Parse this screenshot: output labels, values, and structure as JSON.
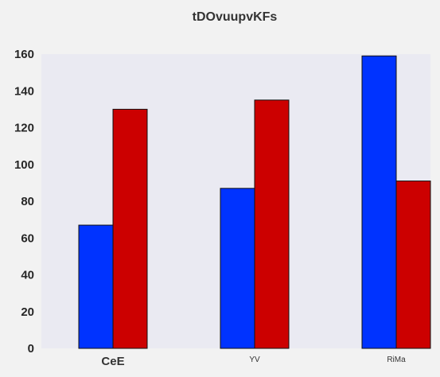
{
  "chart_data": {
    "type": "bar",
    "title": "tDOvuupvKFs",
    "xlabel": "",
    "ylabel": "",
    "categories": [
      "CeE",
      "YV",
      "RiMa"
    ],
    "series": [
      {
        "values": [
          67,
          87,
          159
        ]
      },
      {
        "values": [
          130,
          135,
          91
        ]
      }
    ],
    "ylim": [
      0,
      160
    ],
    "yticks": [
      "0",
      "20",
      "40",
      "60",
      "80",
      "100",
      "120",
      "140",
      "160"
    ],
    "grid": false,
    "legend": "none"
  },
  "colors": {
    "series": [
      "#0033ff",
      "#cc0000"
    ],
    "plot_background": "#eaeaf2",
    "page_background": "#f2f2f2",
    "bar_edge": "#111111"
  }
}
